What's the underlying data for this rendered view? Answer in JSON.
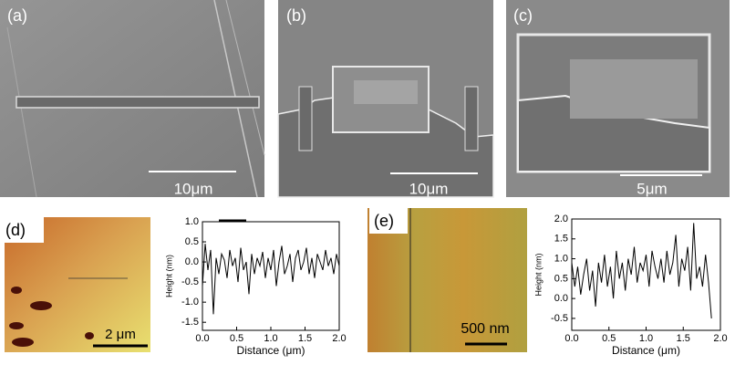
{
  "panels": [
    {
      "label": "(a)",
      "scale_bar": "10μm"
    },
    {
      "label": "(b)",
      "scale_bar": "10μm"
    },
    {
      "label": "(c)",
      "scale_bar": "5μm"
    },
    {
      "label": "(d)",
      "scale_bar": "2 μm"
    },
    {
      "label": "(e)",
      "scale_bar": "500 nm"
    }
  ],
  "chart_data": [
    {
      "type": "line",
      "x_label": "Distance (μm)",
      "y_label": "Height (nm)",
      "x": [
        0,
        0.04,
        0.08,
        0.12,
        0.16,
        0.2,
        0.24,
        0.28,
        0.32,
        0.36,
        0.4,
        0.44,
        0.48,
        0.52,
        0.56,
        0.6,
        0.64,
        0.68,
        0.72,
        0.76,
        0.8,
        0.84,
        0.88,
        0.92,
        0.96,
        1.0,
        1.04,
        1.08,
        1.12,
        1.16,
        1.2,
        1.24,
        1.28,
        1.32,
        1.36,
        1.4,
        1.44,
        1.48,
        1.52,
        1.56,
        1.6,
        1.64,
        1.68,
        1.72,
        1.76,
        1.8,
        1.84,
        1.88,
        1.92,
        1.96,
        2.0
      ],
      "series": [
        {
          "color": "#000000",
          "values": [
            -0.6,
            0.45,
            -0.2,
            0.3,
            -1.3,
            0.1,
            -0.3,
            0.2,
            0.05,
            -0.4,
            0.3,
            -0.1,
            0.1,
            -0.5,
            0.35,
            -0.2,
            0.0,
            -0.8,
            0.2,
            -0.3,
            0.1,
            -0.1,
            0.25,
            -0.4,
            0.1,
            -0.2,
            0.3,
            -0.6,
            0.0,
            0.4,
            -0.3,
            -0.1,
            0.2,
            -0.5,
            0.1,
            0.3,
            -0.2,
            0.0,
            0.35,
            -0.3,
            0.1,
            -0.4,
            0.2,
            0.0,
            -0.2,
            0.3,
            -0.1,
            0.1,
            -0.3,
            0.2,
            -0.1
          ]
        }
      ],
      "xlim": [
        0,
        2
      ],
      "ylim": [
        -1.7,
        1.0
      ],
      "xticks": [
        {
          "value": 0,
          "label": "0.0"
        },
        0.5,
        {
          "value": 1,
          "label": "1.0"
        },
        1.5,
        {
          "value": 2,
          "label": "2.0"
        }
      ],
      "yticks": [
        {
          "value": 1,
          "label": "1.0"
        },
        0.5,
        {
          "value": 0,
          "label": "0.0"
        },
        -0.5,
        {
          "value": -1,
          "label": "-1.0"
        },
        -1.5
      ]
    },
    {
      "type": "line",
      "x_label": "Distance (μm)",
      "y_label": "Height (nm)",
      "x": [
        0,
        0.04,
        0.08,
        0.12,
        0.16,
        0.2,
        0.24,
        0.28,
        0.32,
        0.36,
        0.4,
        0.44,
        0.48,
        0.52,
        0.56,
        0.6,
        0.64,
        0.68,
        0.72,
        0.76,
        0.8,
        0.84,
        0.88,
        0.92,
        0.96,
        1.0,
        1.04,
        1.08,
        1.12,
        1.16,
        1.2,
        1.24,
        1.28,
        1.32,
        1.36,
        1.4,
        1.44,
        1.48,
        1.52,
        1.56,
        1.6,
        1.64,
        1.68,
        1.72,
        1.76,
        1.8,
        1.84,
        1.88
      ],
      "series": [
        {
          "color": "#000000",
          "values": [
            0.9,
            0.3,
            0.8,
            0.1,
            0.6,
            1.0,
            0.2,
            0.7,
            -0.2,
            0.9,
            0.4,
            1.1,
            0.3,
            0.8,
            0.0,
            1.2,
            0.5,
            0.9,
            0.2,
            1.0,
            0.6,
            1.3,
            0.4,
            0.9,
            0.7,
            1.1,
            0.3,
            1.2,
            0.8,
            0.5,
            1.0,
            0.4,
            1.2,
            0.6,
            0.9,
            1.6,
            0.3,
            1.0,
            0.7,
            1.3,
            0.2,
            1.9,
            0.5,
            0.8,
            0.3,
            1.1,
            0.4,
            -0.5
          ]
        }
      ],
      "xlim": [
        0,
        2
      ],
      "ylim": [
        -0.8,
        2.0
      ],
      "xticks": [
        {
          "value": 0,
          "label": "0.0"
        },
        0.5,
        {
          "value": 1,
          "label": "1.0"
        },
        1.5,
        {
          "value": 2,
          "label": "2.0"
        }
      ],
      "yticks": [
        {
          "value": 2,
          "label": "2.0"
        },
        1.5,
        {
          "value": 1,
          "label": "1.0"
        },
        0.5,
        {
          "value": 0,
          "label": "0.0"
        },
        -0.5
      ]
    }
  ]
}
